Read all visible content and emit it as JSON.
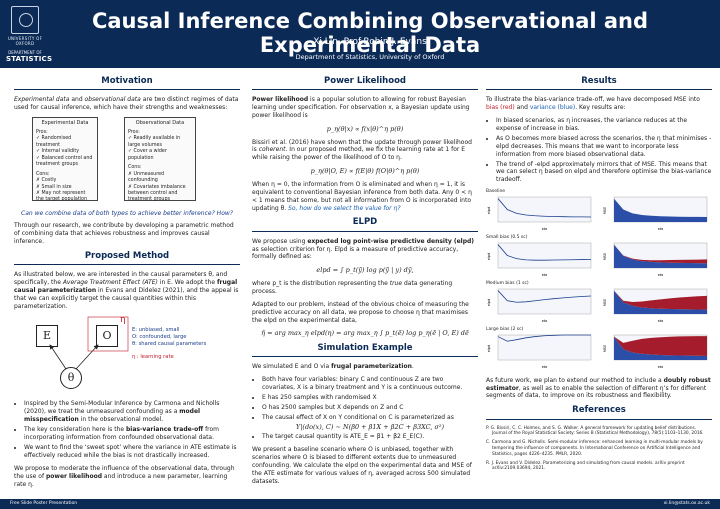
{
  "header": {
    "logo": {
      "university": "UNIVERSITY OF OXFORD",
      "dept_line": "DEPARTMENT OF",
      "dept_name": "STATISTICS"
    },
    "title": "Causal Inference Combining Observational and Experimental Data",
    "authors": "Xi Lin, Prof.Robin J. Evans",
    "affiliation": "Department of Statistics, University of Oxford"
  },
  "footer": {
    "left": "Free Slide Poster Presentation",
    "right": "xi.lin@stats.ox.ac.uk"
  },
  "motivation": {
    "heading": "Motivation",
    "intro_em": "Experimental data",
    "intro_mid": " and ",
    "intro_em2": "observational data",
    "intro_rest": " are two distinct regimes of data used for causal inference, which have their strengths and weaknesses:",
    "exp_box": {
      "title": "Experimental Data",
      "pros_label": "Pros:",
      "pros": [
        "✓ Randomised treatment",
        "✓ Internal validity",
        "✓ Balanced control and treatment groups"
      ],
      "cons_label": "Cons:",
      "cons": [
        "✗ Costly",
        "✗ Small in size",
        "✗ May not represent the target population"
      ]
    },
    "obs_box": {
      "title": "Observational Data",
      "pros_label": "Pros:",
      "pros": [
        "✓ Readily available in large volumes",
        "✓ Cover a wider population"
      ],
      "cons_label": "Cons:",
      "cons": [
        "✗ Unmeasured confounding",
        "✗ Covariates imbalance between control and treatment groups"
      ]
    },
    "question": "Can we combine data of both types to achieve better inference? How?",
    "closing": "Through our research, we contribute by developing a parametric method of combining data that achieves robustness and improves causal inference."
  },
  "proposed": {
    "heading": "Proposed Method",
    "p1a": "As illustrated below, we are interested in the causal parameters θ, and specifically, the ",
    "p1em": "Average Treatment Effect (ATE)",
    "p1b": " in E. We adopt the ",
    "p1bold": "frugal causal parameterization",
    "p1c": " in Evans and Didelez (2021), and the appeal is that we can explicitly target the causal quantities within this parameterization.",
    "dag": {
      "E": "E",
      "O": "O",
      "theta": "θ",
      "eta": "η",
      "legend": [
        "E: unbiased, small",
        "O: confounded, large",
        "θ: shared causal parameters",
        "η : learning rate"
      ]
    },
    "bullets": [
      {
        "pre": "Inspired by the Semi-Modular Inference by Carmona and Nicholls (2020), we treat the unmeasured confounding as a ",
        "bold": "model misspecification",
        "post": " in the observational model."
      },
      {
        "pre": "The key consideration here is the ",
        "bold": "bias-variance trade-off",
        "post": " from incorporating information from confounded observational data."
      },
      {
        "pre": "We want to find the ‘sweet spot’ where the variance in ATE estimate is effectively reduced while the bias is not drastically increased.",
        "bold": "",
        "post": ""
      }
    ],
    "closing_pre": "We propose to moderate the influence of the observational data, through the use of ",
    "closing_bold": "power likelihood",
    "closing_post": " and introduce a new parameter, learning rate η."
  },
  "power": {
    "heading": "Power Likelihood",
    "p1_bold": "Power likelihood",
    "p1": " is a popular solution to allowing for robust Bayesian learning under specification. For observation x, a Bayesian update using power likelihood is",
    "eq1": "p_η(θ|x) ∝ f(x|θ)^η p(θ)",
    "p2a": "Bissiri et al. (2016) have shown that the update through power likelihood is ",
    "p2em": "coherent",
    "p2b": ". In our proposed method, we fix the learning rate at 1 for E while raising the power of the likelihood of O to η.",
    "eq2": "p_η(θ|O, E) ∝ f(E|θ) f(O|θ)^η p(θ)",
    "p3": "When η = 0, the information from O is eliminated and when η = 1, it is equivalent to conventional Bayesian inference from both data. Any 0 < η < 1 means that some, but not all information from O is incorporated into updating θ. ",
    "p3q": "So, how do we select the value for η?"
  },
  "elpd": {
    "heading": "ELPD",
    "p1a": "We propose using ",
    "p1bold": "expected log point-wise predictive density (elpd)",
    "p1b": " as selection criterion for η. Elpd is a measure of predictive accuracy, formally defined as:",
    "eq1": "elpd = ∫ p_t(ỹ) log p(ỹ | y) dỹ,",
    "p2a": "where p_t is the distribution representing the ",
    "p2em": "true",
    "p2b": " data generating process.",
    "p3": "Adapted to our problem, instead of the obvious choice of measuring the predictive accuracy on all data, we propose to choose η that maximises the elpd on the experimental data,",
    "eq2": "η̂ = arg max_η elpd(η) = arg max_η ∫ p_t(ẽ) log p_η(ẽ | O, E) dẽ"
  },
  "simulation": {
    "heading": "Simulation Example",
    "p1a": "We simulated E and O via ",
    "p1bold": "frugal parameterization",
    "p1b": ".",
    "bullets": [
      "Both have four variables: binary C and continuous Z are two covariates, X is a binary treatment and Y is a continuous outcome.",
      "E has 250 samples with randomised X",
      "O has 2500 samples but X depends on Z and C",
      "The causal effect of X on Y conditional on C is parameterized as",
      "The target causal quantity is ATE_E = β1 + β2 E_E(C)."
    ],
    "eq": "Y|(do(x), C) ∼ N(β0 + β1X + β2C + β3XC, σ²)",
    "closing": "We present a baseline scenario where O is unbiased, together with scenarios where O is biased to different extents due to unmeasured confounding. We calculate the elpd on the experimental data and MSE of the ATE estimate for various values of η, averaged across 500 simulated datasets."
  },
  "results": {
    "heading": "Results",
    "p1a": "To illustrate the bias-variance trade-off, we have decomposed MSE into ",
    "p1red": "bias (red)",
    "p1mid": " and ",
    "p1blue": "variance (blue)",
    "p1b": ". Key results are:",
    "bullets": [
      "In biased scenarios, as η increases, the variance reduces at the expense of increase in bias.",
      "As O becomes more biased across the scenarios, the η that minimises -elpd decreases. This means that we want to incorporate less information from more biased observational data.",
      "The trend of -elpd approximately mirrors that of MSE. This means that we can select η based on elpd and therefore optimise the bias-variance tradeoff."
    ],
    "closing_pre": "As future work, we plan to extend our method to include a ",
    "closing_bold": "doubly robust estimator",
    "closing_post": ", as well as to enable the selection of different η’s for different segments of data, to improve on its robustness and flexibility.",
    "references_heading": "References",
    "references": [
      "P. G. Bissiri, C. C. Holmes, and S. G. Walker. A general framework for updating belief distributions. Journal of the Royal Statistical Society: Series B (Statistical Methodology), 78(5):1103–1130, 2016.",
      "C. Carmona and G. Nicholls. Semi-modular inference: enhanced learning in multi-modular models by tempering the influence of components. In International Conference on Artificial Intelligence and Statistics, pages 4226–4235. PMLR, 2020.",
      "R. J. Evans and V. Didelez. Parameterizing and simulating from causal models. arXiv preprint arXiv:2109.03694, 2021."
    ]
  },
  "chart_data": [
    {
      "type": "line",
      "title": "Baseline",
      "xlabel": "eta",
      "ylabel": "elpd",
      "x": [
        0,
        0.1,
        0.2,
        0.3,
        0.4,
        0.5,
        0.6,
        0.7,
        0.8,
        0.9,
        1.0
      ],
      "series": [
        {
          "values": [
            1.5,
            0.8,
            0.55,
            0.45,
            0.4,
            0.37,
            0.35,
            0.34,
            0.33,
            0.33,
            0.32
          ]
        }
      ],
      "ylim": [
        0,
        1.6
      ]
    },
    {
      "type": "area",
      "title": "",
      "xlabel": "eta",
      "ylabel": "MSE",
      "x": [
        0,
        0.1,
        0.2,
        0.3,
        0.4,
        0.5,
        0.6,
        0.7,
        0.8,
        0.9,
        1.0
      ],
      "series": [
        {
          "name": "variance",
          "values": [
            1.5,
            0.8,
            0.55,
            0.45,
            0.4,
            0.37,
            0.35,
            0.34,
            0.33,
            0.33,
            0.32
          ]
        },
        {
          "name": "bias",
          "values": [
            0,
            0,
            0,
            0,
            0,
            0,
            0,
            0,
            0,
            0,
            0
          ]
        }
      ],
      "ylim": [
        0,
        1.6
      ]
    },
    {
      "type": "line",
      "title": "Small bias (0.5 sc)",
      "xlabel": "eta",
      "ylabel": "elpd",
      "x": [
        0,
        0.1,
        0.2,
        0.3,
        0.4,
        0.5,
        0.6,
        0.7,
        0.8,
        0.9,
        1.0
      ],
      "series": [
        {
          "values": [
            1.5,
            0.8,
            0.6,
            0.52,
            0.5,
            0.5,
            0.51,
            0.52,
            0.53,
            0.54,
            0.55
          ]
        }
      ],
      "ylim": [
        0,
        1.6
      ]
    },
    {
      "type": "area",
      "title": "",
      "xlabel": "eta",
      "ylabel": "MSE",
      "x": [
        0,
        0.1,
        0.2,
        0.3,
        0.4,
        0.5,
        0.6,
        0.7,
        0.8,
        0.9,
        1.0
      ],
      "series": [
        {
          "name": "variance",
          "values": [
            1.5,
            0.78,
            0.55,
            0.44,
            0.39,
            0.36,
            0.34,
            0.33,
            0.32,
            0.31,
            0.3
          ]
        },
        {
          "name": "bias",
          "values": [
            0,
            0.02,
            0.05,
            0.08,
            0.11,
            0.14,
            0.17,
            0.19,
            0.21,
            0.23,
            0.25
          ]
        }
      ],
      "ylim": [
        0,
        1.6
      ]
    },
    {
      "type": "line",
      "title": "Medium bias (1 sc)",
      "xlabel": "eta",
      "ylabel": "elpd",
      "x": [
        0,
        0.1,
        0.2,
        0.3,
        0.4,
        0.5,
        0.6,
        0.7,
        0.8,
        0.9,
        1.0
      ],
      "series": [
        {
          "values": [
            1.5,
            0.85,
            0.75,
            0.78,
            0.85,
            0.92,
            0.98,
            1.03,
            1.08,
            1.12,
            1.15
          ]
        }
      ],
      "ylim": [
        0,
        1.6
      ]
    },
    {
      "type": "area",
      "title": "",
      "xlabel": "eta",
      "ylabel": "MSE",
      "x": [
        0,
        0.1,
        0.2,
        0.3,
        0.4,
        0.5,
        0.6,
        0.7,
        0.8,
        0.9,
        1.0
      ],
      "series": [
        {
          "name": "variance",
          "values": [
            1.5,
            0.75,
            0.52,
            0.42,
            0.37,
            0.34,
            0.32,
            0.31,
            0.3,
            0.29,
            0.28
          ]
        },
        {
          "name": "bias",
          "values": [
            0,
            0.1,
            0.25,
            0.38,
            0.5,
            0.6,
            0.68,
            0.75,
            0.8,
            0.85,
            0.88
          ]
        }
      ],
      "ylim": [
        0,
        1.6
      ]
    },
    {
      "type": "line",
      "title": "Large bias (2 sc)",
      "xlabel": "eta",
      "ylabel": "elpd",
      "x": [
        0,
        0.1,
        0.2,
        0.3,
        0.4,
        0.5,
        0.6,
        0.7,
        0.8,
        0.9,
        1.0
      ],
      "series": [
        {
          "values": [
            1.5,
            1.2,
            1.3,
            1.42,
            1.5,
            1.55,
            1.58,
            1.6,
            1.6,
            1.6,
            1.6
          ]
        }
      ],
      "ylim": [
        0,
        1.6
      ]
    },
    {
      "type": "area",
      "title": "",
      "xlabel": "eta",
      "ylabel": "MSE",
      "x": [
        0,
        0.1,
        0.2,
        0.3,
        0.4,
        0.5,
        0.6,
        0.7,
        0.8,
        0.9,
        1.0
      ],
      "series": [
        {
          "name": "variance",
          "values": [
            1.5,
            0.7,
            0.48,
            0.4,
            0.35,
            0.32,
            0.3,
            0.29,
            0.28,
            0.27,
            0.26
          ]
        },
        {
          "name": "bias",
          "values": [
            0,
            0.4,
            0.75,
            0.95,
            1.07,
            1.14,
            1.19,
            1.22,
            1.24,
            1.26,
            1.27
          ]
        }
      ],
      "ylim": [
        0,
        1.6
      ]
    }
  ]
}
